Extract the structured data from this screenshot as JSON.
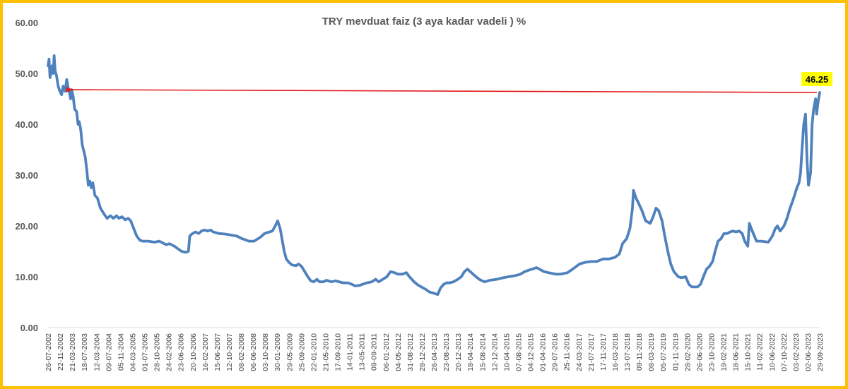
{
  "chart_data": {
    "type": "line",
    "title": "TRY mevduat faiz (3 aya kadar vadeli ) %",
    "xlabel": "",
    "ylabel": "",
    "ylim": [
      0,
      60
    ],
    "yticks": [
      "0.00",
      "10.00",
      "20.00",
      "30.00",
      "40.00",
      "50.00",
      "60.00"
    ],
    "ytick_values": [
      0,
      10,
      20,
      30,
      40,
      50,
      60
    ],
    "grid": false,
    "legend": "none",
    "line_color": "#4F81BD",
    "annotation_color": "#E31A1C",
    "callout_bg": "#FFFF00",
    "xtick_labels": [
      "26-07-2002",
      "22-11-2002",
      "21-03-2003",
      "18-07-2003",
      "12-03-2004",
      "09-07-2004",
      "05-11-2004",
      "04-03-2005",
      "01-07-2005",
      "28-10-2005",
      "24-02-2006",
      "23-06-2006",
      "20-10-2006",
      "16-02-2007",
      "15-06-2007",
      "12-10-2007",
      "08-02-2008",
      "06-06-2008",
      "03-10-2008",
      "30-01-2009",
      "29-05-2009",
      "25-09-2009",
      "22-01-2010",
      "21-05-2010",
      "17-09-2010",
      "14-01-2011",
      "13-05-2011",
      "09-09-2011",
      "06-01-2012",
      "04-05-2012",
      "31-08-2012",
      "28-12-2012",
      "26-04-2013",
      "23-08-2013",
      "20-12-2013",
      "18-04-2014",
      "15-08-2014",
      "12-12-2014",
      "10-04-2015",
      "07-08-2015",
      "04-12-2015",
      "01-04-2016",
      "29-07-2016",
      "25-11-2016",
      "24-03-2017",
      "21-07-2017",
      "17-11-2017",
      "16-03-2018",
      "13-07-2018",
      "09-11-2018",
      "08-03-2019",
      "05-07-2019",
      "01-11-2019",
      "28-02-2020",
      "26-06-2020",
      "23-10-2020",
      "19-02-2021",
      "18-06-2021",
      "15-10-2021",
      "11-02-2022",
      "10-06-2022",
      "07-10-2022",
      "03-02-2023",
      "02-06-2023",
      "29-09-2023"
    ],
    "annotation": {
      "label": "46.25",
      "from_value": 46.25,
      "to_date": "2003-03-21",
      "to_value": 46.8
    },
    "series": [
      {
        "points": [
          [
            "2002-07-26",
            51.5
          ],
          [
            "2002-08-05",
            52.8
          ],
          [
            "2002-08-15",
            49.2
          ],
          [
            "2002-08-25",
            50.5
          ],
          [
            "2002-09-05",
            51.5
          ],
          [
            "2002-09-15",
            50.0
          ],
          [
            "2002-09-25",
            53.5
          ],
          [
            "2002-10-05",
            50.5
          ],
          [
            "2002-10-20",
            49.5
          ],
          [
            "2002-11-05",
            47.5
          ],
          [
            "2002-11-22",
            46.5
          ],
          [
            "2002-12-10",
            45.8
          ],
          [
            "2002-12-25",
            47.5
          ],
          [
            "2003-01-15",
            46.5
          ],
          [
            "2003-01-30",
            48.8
          ],
          [
            "2003-02-15",
            47.0
          ],
          [
            "2003-03-01",
            46.0
          ],
          [
            "2003-03-10",
            45.0
          ],
          [
            "2003-03-21",
            46.8
          ],
          [
            "2003-04-05",
            45.5
          ],
          [
            "2003-04-20",
            43.0
          ],
          [
            "2003-05-10",
            42.5
          ],
          [
            "2003-05-25",
            40.0
          ],
          [
            "2003-06-05",
            40.5
          ],
          [
            "2003-06-20",
            39.0
          ],
          [
            "2003-07-05",
            36.0
          ],
          [
            "2003-07-18",
            35.0
          ],
          [
            "2003-08-05",
            33.5
          ],
          [
            "2003-08-20",
            31.0
          ],
          [
            "2003-09-05",
            28.0
          ],
          [
            "2003-09-20",
            28.8
          ],
          [
            "2003-10-05",
            27.5
          ],
          [
            "2003-10-20",
            28.5
          ],
          [
            "2003-11-10",
            26.0
          ],
          [
            "2003-12-05",
            25.5
          ],
          [
            "2004-01-05",
            23.5
          ],
          [
            "2004-02-05",
            22.5
          ],
          [
            "2004-03-12",
            21.5
          ],
          [
            "2004-04-15",
            22.0
          ],
          [
            "2004-05-15",
            21.5
          ],
          [
            "2004-06-15",
            22.0
          ],
          [
            "2004-07-09",
            21.5
          ],
          [
            "2004-08-10",
            21.8
          ],
          [
            "2004-09-10",
            21.2
          ],
          [
            "2004-10-10",
            21.5
          ],
          [
            "2004-11-05",
            21.0
          ],
          [
            "2004-12-05",
            19.5
          ],
          [
            "2005-01-05",
            18.0
          ],
          [
            "2005-02-05",
            17.2
          ],
          [
            "2005-03-04",
            17.0
          ],
          [
            "2005-05-01",
            17.0
          ],
          [
            "2005-07-01",
            16.8
          ],
          [
            "2005-08-20",
            17.0
          ],
          [
            "2005-10-28",
            16.3
          ],
          [
            "2005-12-01",
            16.5
          ],
          [
            "2006-01-20",
            16.0
          ],
          [
            "2006-02-24",
            15.5
          ],
          [
            "2006-04-01",
            15.0
          ],
          [
            "2006-05-15",
            14.8
          ],
          [
            "2006-06-10",
            15.0
          ],
          [
            "2006-06-23",
            18.0
          ],
          [
            "2006-07-20",
            18.5
          ],
          [
            "2006-08-20",
            18.8
          ],
          [
            "2006-09-20",
            18.5
          ],
          [
            "2006-10-20",
            19.0
          ],
          [
            "2006-11-20",
            19.2
          ],
          [
            "2006-12-20",
            19.0
          ],
          [
            "2007-01-20",
            19.2
          ],
          [
            "2007-02-16",
            18.8
          ],
          [
            "2007-04-15",
            18.5
          ],
          [
            "2007-06-15",
            18.4
          ],
          [
            "2007-08-15",
            18.2
          ],
          [
            "2007-10-12",
            18.0
          ],
          [
            "2007-12-01",
            17.5
          ],
          [
            "2008-01-15",
            17.2
          ],
          [
            "2008-02-08",
            17.0
          ],
          [
            "2008-04-01",
            17.0
          ],
          [
            "2008-06-06",
            17.8
          ],
          [
            "2008-07-15",
            18.5
          ],
          [
            "2008-09-01",
            18.8
          ],
          [
            "2008-10-03",
            19.0
          ],
          [
            "2008-11-01",
            20.0
          ],
          [
            "2008-11-25",
            21.0
          ],
          [
            "2008-12-20",
            19.5
          ],
          [
            "2009-01-30",
            15.0
          ],
          [
            "2009-02-20",
            13.5
          ],
          [
            "2009-03-20",
            12.8
          ],
          [
            "2009-04-20",
            12.3
          ],
          [
            "2009-05-29",
            12.2
          ],
          [
            "2009-06-25",
            12.5
          ],
          [
            "2009-07-25",
            12.0
          ],
          [
            "2009-08-25",
            11.0
          ],
          [
            "2009-09-25",
            10.0
          ],
          [
            "2009-10-25",
            9.2
          ],
          [
            "2009-11-25",
            9.0
          ],
          [
            "2009-12-25",
            9.5
          ],
          [
            "2010-01-22",
            9.0
          ],
          [
            "2010-03-01",
            9.0
          ],
          [
            "2010-04-01",
            9.3
          ],
          [
            "2010-05-21",
            9.0
          ],
          [
            "2010-07-01",
            9.2
          ],
          [
            "2010-09-17",
            8.8
          ],
          [
            "2010-11-01",
            8.8
          ],
          [
            "2010-12-15",
            8.5
          ],
          [
            "2011-01-14",
            8.2
          ],
          [
            "2011-03-01",
            8.3
          ],
          [
            "2011-05-13",
            8.8
          ],
          [
            "2011-07-01",
            9.0
          ],
          [
            "2011-08-10",
            9.5
          ],
          [
            "2011-09-09",
            9.0
          ],
          [
            "2011-10-20",
            9.5
          ],
          [
            "2011-12-01",
            10.0
          ],
          [
            "2012-01-06",
            11.0
          ],
          [
            "2012-02-15",
            10.8
          ],
          [
            "2012-03-20",
            10.5
          ],
          [
            "2012-05-04",
            10.5
          ],
          [
            "2012-06-15",
            10.8
          ],
          [
            "2012-07-15",
            10.0
          ],
          [
            "2012-08-31",
            9.0
          ],
          [
            "2012-10-15",
            8.3
          ],
          [
            "2012-11-30",
            7.8
          ],
          [
            "2012-12-28",
            7.5
          ],
          [
            "2013-02-01",
            7.0
          ],
          [
            "2013-03-10",
            6.8
          ],
          [
            "2013-04-26",
            6.5
          ],
          [
            "2013-05-25",
            7.8
          ],
          [
            "2013-06-25",
            8.5
          ],
          [
            "2013-07-25",
            8.8
          ],
          [
            "2013-08-23",
            8.8
          ],
          [
            "2013-10-01",
            9.0
          ],
          [
            "2013-11-15",
            9.5
          ],
          [
            "2013-12-20",
            10.0
          ],
          [
            "2014-01-20",
            11.0
          ],
          [
            "2014-02-20",
            11.5
          ],
          [
            "2014-03-20",
            11.0
          ],
          [
            "2014-04-18",
            10.5
          ],
          [
            "2014-05-18",
            10.0
          ],
          [
            "2014-06-18",
            9.5
          ],
          [
            "2014-07-18",
            9.2
          ],
          [
            "2014-08-15",
            9.0
          ],
          [
            "2014-10-01",
            9.3
          ],
          [
            "2014-12-12",
            9.5
          ],
          [
            "2015-02-15",
            9.8
          ],
          [
            "2015-04-10",
            10.0
          ],
          [
            "2015-06-10",
            10.2
          ],
          [
            "2015-08-07",
            10.5
          ],
          [
            "2015-09-20",
            11.0
          ],
          [
            "2015-11-01",
            11.3
          ],
          [
            "2015-12-04",
            11.5
          ],
          [
            "2016-01-15",
            11.8
          ],
          [
            "2016-02-15",
            11.5
          ],
          [
            "2016-04-01",
            11.0
          ],
          [
            "2016-05-15",
            10.8
          ],
          [
            "2016-07-29",
            10.5
          ],
          [
            "2016-09-15",
            10.5
          ],
          [
            "2016-11-25",
            10.8
          ],
          [
            "2017-01-15",
            11.5
          ],
          [
            "2017-03-24",
            12.5
          ],
          [
            "2017-05-15",
            12.8
          ],
          [
            "2017-07-21",
            13.0
          ],
          [
            "2017-09-15",
            13.0
          ],
          [
            "2017-11-17",
            13.5
          ],
          [
            "2018-01-15",
            13.5
          ],
          [
            "2018-03-16",
            13.8
          ],
          [
            "2018-05-01",
            14.5
          ],
          [
            "2018-06-01",
            16.5
          ],
          [
            "2018-07-13",
            17.5
          ],
          [
            "2018-08-15",
            19.5
          ],
          [
            "2018-09-10",
            23.5
          ],
          [
            "2018-09-20",
            27.0
          ],
          [
            "2018-10-15",
            25.5
          ],
          [
            "2018-11-09",
            24.5
          ],
          [
            "2018-12-15",
            23.0
          ],
          [
            "2019-01-20",
            21.0
          ],
          [
            "2019-03-08",
            20.5
          ],
          [
            "2019-04-10",
            22.0
          ],
          [
            "2019-05-05",
            23.5
          ],
          [
            "2019-06-01",
            23.0
          ],
          [
            "2019-07-05",
            21.0
          ],
          [
            "2019-08-01",
            18.0
          ],
          [
            "2019-09-01",
            15.0
          ],
          [
            "2019-10-01",
            12.5
          ],
          [
            "2019-11-01",
            11.0
          ],
          [
            "2019-12-15",
            10.0
          ],
          [
            "2020-01-15",
            9.8
          ],
          [
            "2020-02-28",
            10.0
          ],
          [
            "2020-04-01",
            8.5
          ],
          [
            "2020-05-01",
            8.0
          ],
          [
            "2020-06-26",
            8.0
          ],
          [
            "2020-07-26",
            8.5
          ],
          [
            "2020-08-25",
            10.0
          ],
          [
            "2020-09-25",
            11.5
          ],
          [
            "2020-10-23",
            12.0
          ],
          [
            "2020-11-25",
            13.0
          ],
          [
            "2020-12-20",
            15.0
          ],
          [
            "2021-01-20",
            17.0
          ],
          [
            "2021-02-19",
            17.5
          ],
          [
            "2021-03-20",
            18.5
          ],
          [
            "2021-04-20",
            18.5
          ],
          [
            "2021-05-20",
            18.8
          ],
          [
            "2021-06-18",
            19.0
          ],
          [
            "2021-07-20",
            18.8
          ],
          [
            "2021-08-20",
            19.0
          ],
          [
            "2021-09-20",
            18.5
          ],
          [
            "2021-10-15",
            17.0
          ],
          [
            "2021-11-15",
            16.0
          ],
          [
            "2021-12-01",
            20.5
          ],
          [
            "2021-12-20",
            19.5
          ],
          [
            "2022-01-20",
            18.0
          ],
          [
            "2022-02-11",
            17.0
          ],
          [
            "2022-04-01",
            17.0
          ],
          [
            "2022-06-10",
            16.8
          ],
          [
            "2022-07-20",
            18.0
          ],
          [
            "2022-08-20",
            19.5
          ],
          [
            "2022-09-10",
            20.0
          ],
          [
            "2022-10-07",
            19.0
          ],
          [
            "2022-11-15",
            20.0
          ],
          [
            "2022-12-15",
            21.5
          ],
          [
            "2023-01-15",
            23.5
          ],
          [
            "2023-02-03",
            24.5
          ],
          [
            "2023-03-01",
            26.0
          ],
          [
            "2023-03-25",
            27.5
          ],
          [
            "2023-04-15",
            28.5
          ],
          [
            "2023-05-01",
            30.5
          ],
          [
            "2023-05-15",
            35.0
          ],
          [
            "2023-06-02",
            40.0
          ],
          [
            "2023-06-20",
            42.0
          ],
          [
            "2023-07-05",
            33.0
          ],
          [
            "2023-07-20",
            28.0
          ],
          [
            "2023-08-10",
            30.5
          ],
          [
            "2023-08-25",
            40.0
          ],
          [
            "2023-09-10",
            43.0
          ],
          [
            "2023-09-29",
            45.0
          ],
          [
            "2023-10-10",
            42.0
          ],
          [
            "2023-10-25",
            44.5
          ],
          [
            "2023-11-10",
            46.25
          ]
        ]
      }
    ]
  }
}
